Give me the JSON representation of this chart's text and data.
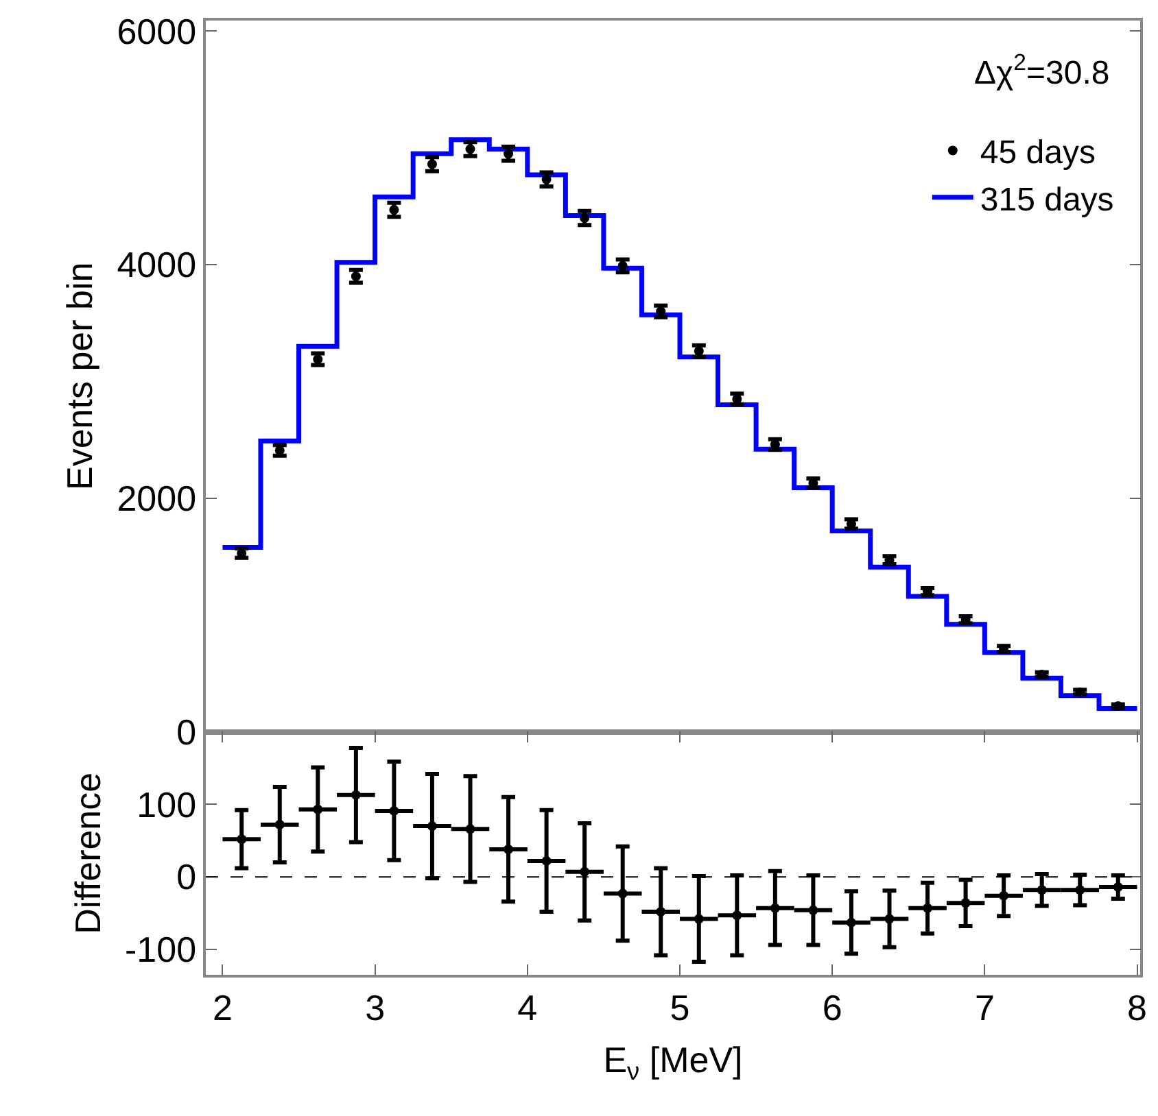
{
  "chart_data": [
    {
      "type": "scatter",
      "ylabel": "Events per bin",
      "xlim": [
        1.89,
        8.02
      ],
      "ylim": [
        0,
        6090
      ],
      "yticks": [
        0,
        2000,
        4000,
        6000
      ],
      "tick_labels": "y",
      "legend": "top right",
      "annotations": [
        "Δχ$^{2}$=30.8"
      ],
      "series": [
        {
          "name": "45 days",
          "type": "scatter",
          "color": "#000000",
          "x": [
            2.125,
            2.375,
            2.625,
            2.875,
            3.125,
            3.375,
            3.625,
            3.875,
            4.125,
            4.375,
            4.625,
            4.875,
            5.125,
            5.375,
            5.625,
            5.875,
            6.125,
            6.375,
            6.625,
            6.875,
            7.125,
            7.375,
            7.625,
            7.875
          ],
          "values": [
            1530,
            2410,
            3190,
            3900,
            4470,
            4860,
            4990,
            4950,
            4730,
            4400,
            3990,
            3600,
            3260,
            2850,
            2460,
            2130,
            1780,
            1470,
            1200,
            960,
            710,
            490,
            340,
            220
          ],
          "errors": [
            40,
            45,
            50,
            55,
            60,
            60,
            60,
            60,
            60,
            60,
            55,
            50,
            50,
            45,
            45,
            40,
            40,
            35,
            30,
            30,
            25,
            20,
            20,
            15
          ]
        },
        {
          "name": "315 days",
          "type": "histogram",
          "color": "#0000ff",
          "line_style": "solid",
          "bins": [
            2.0,
            2.25,
            2.5,
            2.75,
            3.0,
            3.25,
            3.5,
            3.75,
            4.0,
            4.25,
            4.5,
            4.75,
            5.0,
            5.25,
            5.5,
            5.75,
            6.0,
            6.25,
            6.5,
            6.75,
            7.0,
            7.25,
            7.5,
            7.75,
            8.0
          ],
          "values": [
            1580,
            2490,
            3300,
            4020,
            4580,
            4950,
            5070,
            4990,
            4770,
            4420,
            3970,
            3570,
            3210,
            2800,
            2420,
            2090,
            1720,
            1410,
            1160,
            920,
            680,
            460,
            310,
            200
          ]
        }
      ]
    },
    {
      "type": "scatter",
      "ylabel": "Difference",
      "xlabel": "E$_{ν}$ [MeV]",
      "xlim": [
        1.89,
        8.02
      ],
      "xticks": [
        2,
        3,
        4,
        5,
        6,
        7,
        8
      ],
      "ylim": [
        -135,
        200
      ],
      "yticks": [
        -100,
        0,
        100
      ],
      "legend": false,
      "ref_lines": [
        {
          "axis": "y",
          "value": 0,
          "color": "#000000",
          "line_style": "dashed"
        }
      ],
      "series": [
        {
          "color": "#000000",
          "x": [
            2.125,
            2.375,
            2.625,
            2.875,
            3.125,
            3.375,
            3.625,
            3.875,
            4.125,
            4.375,
            4.625,
            4.875,
            5.125,
            5.375,
            5.625,
            5.875,
            6.125,
            6.375,
            6.625,
            6.875,
            7.125,
            7.375,
            7.625,
            7.875
          ],
          "values": [
            52,
            72,
            93,
            113,
            91,
            70,
            66,
            38,
            22,
            7,
            -23,
            -48,
            -58,
            -53,
            -43,
            -46,
            -63,
            -58,
            -43,
            -36,
            -26,
            -18,
            -18,
            -14
          ],
          "errors": [
            40,
            52,
            58,
            65,
            68,
            72,
            73,
            72,
            70,
            67,
            65,
            60,
            59,
            55,
            51,
            48,
            43,
            39,
            35,
            32,
            28,
            22,
            21,
            16
          ],
          "xerrors": [
            0.125,
            0.125,
            0.125,
            0.125,
            0.125,
            0.125,
            0.125,
            0.125,
            0.125,
            0.125,
            0.125,
            0.125,
            0.125,
            0.125,
            0.125,
            0.125,
            0.125,
            0.125,
            0.125,
            0.125,
            0.125,
            0.125,
            0.125,
            0.125
          ]
        }
      ]
    }
  ]
}
